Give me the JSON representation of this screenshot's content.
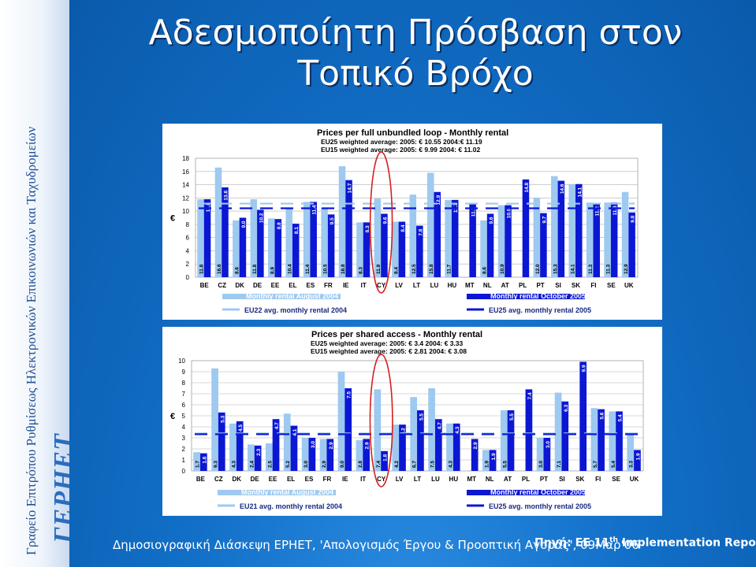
{
  "sidebar": {
    "vertical_text": "Γραφείο Επιτρόπου Ρυθμίσεως Ηλεκτρονικών Επικοινωνιών και Ταχυδρομείων",
    "logo": "ΓΕΡΗΕΤ"
  },
  "slide": {
    "title_line1": "Αδεσμοποίητη Πρόσβαση στον",
    "title_line2": "Τοπικό Βρόχο"
  },
  "footer": {
    "left": "Δημοσιογραφική Διάσκεψη ΕΡΗΕΤ, 'Απολογισμός Έργου & Προοπτική Αγοράς', 09Μαρ'06",
    "right_prefix": "Πηγή: EE 11",
    "right_sup": "th",
    "right_suffix": " Implementation Report"
  },
  "colors": {
    "august": "#9ec9f0",
    "october": "#0c17d4",
    "eu_old_avg": "#9ec9f0",
    "eu25_avg": "#0c17d4",
    "highlight": "#d62020"
  },
  "chart_data": [
    {
      "type": "bar",
      "title": "Prices per full unbundled loop - Monthly rental",
      "subtitle_lines": [
        "EU25 weighted average: 2005: € 10.55  2004:€ 11.19",
        "EU15 weighted average: 2005: € 9.99    2004: € 11.02"
      ],
      "ylabel": "€",
      "ylim": [
        0,
        18
      ],
      "yticks": [
        0,
        2,
        4,
        6,
        8,
        10,
        12,
        14,
        16,
        18
      ],
      "grid": true,
      "categories": [
        "BE",
        "CZ",
        "DK",
        "DE",
        "EE",
        "EL",
        "ES",
        "FR",
        "IE",
        "IT",
        "CY",
        "LV",
        "LT",
        "LU",
        "HU",
        "MT",
        "NL",
        "AT",
        "PL",
        "PT",
        "SI",
        "SK",
        "FI",
        "SE",
        "UK"
      ],
      "series": [
        {
          "name": "Monthly rental August 2004",
          "values": [
            11.8,
            16.6,
            8.6,
            11.8,
            8.9,
            10.4,
            11.4,
            10.5,
            16.8,
            8.3,
            11.9,
            8.4,
            12.5,
            15.8,
            11.7,
            null,
            8.6,
            10.9,
            null,
            12.0,
            15.3,
            14.1,
            11.3,
            11.3,
            12.9
          ]
        },
        {
          "name": "Monthly rental October 2005",
          "values": [
            11.8,
            13.6,
            9.0,
            10.2,
            8.8,
            8.1,
            11.4,
            9.5,
            14.7,
            8.3,
            9.6,
            8.4,
            7.8,
            12.9,
            11.7,
            11.1,
            9.6,
            10.9,
            14.8,
            9.7,
            14.6,
            14.1,
            11.2,
            11.3,
            9.8
          ]
        }
      ],
      "avg_lines": [
        {
          "name": "EU22 avg. monthly rental 2004",
          "value": 11.02
        },
        {
          "name": "EU25 avg. monthly rental 2005",
          "value": 10.55
        }
      ],
      "bar_labels": [
        [
          "11.8",
          "16.6",
          "8.6",
          "11.8",
          "8.9",
          "10.4",
          "11.4",
          "10.5",
          "16.8",
          "8.3",
          "11.9",
          "8.4",
          "12.5",
          "15.8",
          "11.7",
          "",
          "8.6",
          "10.9",
          "",
          "12.0",
          "15.3",
          "14.1",
          "11.3",
          "11.3",
          "12.9"
        ],
        [
          "11.8",
          "13.6",
          "9.0",
          "10.2",
          "8.8",
          "8.1",
          "11.4",
          "9.5",
          "14.7",
          "8.3",
          "9.6",
          "8.4",
          "7.8",
          "12.9",
          "11.7",
          "11.1",
          "9.6",
          "10.9",
          "14.8",
          "9.7",
          "14.6",
          "14.1",
          "11.2",
          "11.3",
          "9.8"
        ]
      ],
      "highlight_category": "CY"
    },
    {
      "type": "bar",
      "title": "Prices per shared access - Monthly rental",
      "subtitle_lines": [
        "EU25 weighted average: 2005: € 3.4  2004: € 3.33",
        "EU15 weighted average: 2005: € 2.81   2004: € 3.08"
      ],
      "ylabel": "€",
      "ylim": [
        0,
        10
      ],
      "yticks": [
        0,
        1,
        2,
        3,
        4,
        5,
        6,
        7,
        8,
        9,
        10
      ],
      "grid": true,
      "categories": [
        "BE",
        "CZ",
        "DK",
        "DE",
        "EE",
        "EL",
        "ES",
        "FR",
        "IE",
        "IT",
        "CY",
        "LV",
        "LT",
        "LU",
        "HU",
        "MT",
        "NL",
        "AT",
        "PL",
        "PT",
        "SI",
        "SK",
        "FI",
        "SE",
        "UK"
      ],
      "series": [
        {
          "name": "Monthly rental August 2004",
          "values": [
            1.7,
            9.3,
            4.3,
            2.4,
            2.5,
            5.2,
            3.0,
            2.9,
            9.0,
            2.8,
            7.4,
            4.2,
            6.7,
            7.5,
            4.3,
            null,
            1.9,
            5.5,
            null,
            3.0,
            7.1,
            null,
            5.7,
            5.4,
            3.3
          ]
        },
        {
          "name": "Monthly rental October 2005",
          "values": [
            1.6,
            5.3,
            4.5,
            2.3,
            4.7,
            4.1,
            3.0,
            2.9,
            7.5,
            2.9,
            1.8,
            4.2,
            5.5,
            4.7,
            4.3,
            2.9,
            1.9,
            5.5,
            7.4,
            3.0,
            6.3,
            9.9,
            5.6,
            5.4,
            1.9
          ]
        }
      ],
      "avg_lines": [
        {
          "name": "EU21 avg. monthly rental 2004",
          "value": 3.33
        },
        {
          "name": "EU25 avg. monthly rental 2005",
          "value": 3.4
        }
      ],
      "bar_labels": [
        [
          "1.7",
          "9.3",
          "4.3",
          "2.4",
          "2.5",
          "5.2",
          "3.0",
          "2.9",
          "9.0",
          "2.8",
          "7.4",
          "4.2",
          "6.7",
          "7.5",
          "4.3",
          "",
          "1.9",
          "5.5",
          "",
          "3.0",
          "7.1",
          "",
          "5.7",
          "5.4",
          "3.3"
        ],
        [
          "1.6",
          "5.3",
          "4.5",
          "2.3",
          "4.7",
          "4.1",
          "3.0",
          "2.9",
          "7.5",
          "2.9",
          "1.8",
          "4.2",
          "5.5",
          "4.7",
          "4.3",
          "2.9",
          "1.9",
          "5.5",
          "7.4",
          "3.0",
          "6.3",
          "9.9",
          "5.6",
          "5.4",
          "1.9"
        ]
      ],
      "highlight_category": "CY"
    }
  ]
}
